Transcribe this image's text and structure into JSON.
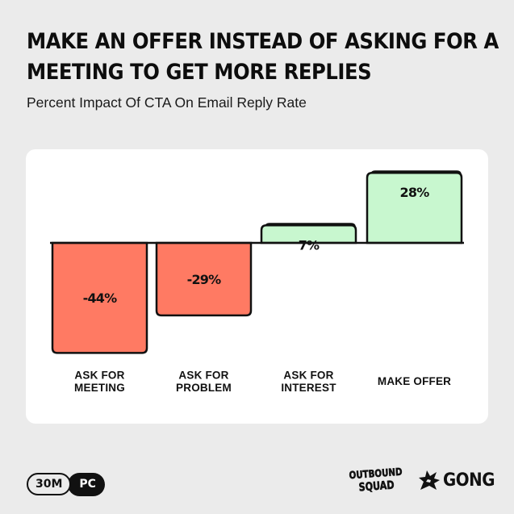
{
  "header": {
    "title_line1": "MAKE AN OFFER INSTEAD OF ASKING FOR A",
    "title_line2": "MEETING TO GET MORE REPLIES",
    "subtitle": "Percent Impact Of CTA On Email Reply Rate"
  },
  "chart_data": {
    "type": "bar",
    "title": "",
    "categories": [
      [
        "ASK FOR",
        "MEETING"
      ],
      [
        "ASK FOR",
        "PROBLEM"
      ],
      [
        "ASK FOR",
        "INTEREST"
      ],
      [
        "MAKE OFFER"
      ]
    ],
    "values": [
      -44,
      -29,
      7,
      28
    ],
    "value_labels": [
      "-44%",
      "-29%",
      "7%",
      "28%"
    ],
    "unit": "%",
    "ylim": [
      -44,
      28
    ],
    "grid": false,
    "legend": "none",
    "colors": {
      "negative": "#ff7a63",
      "positive": "#c8f7cf",
      "outline": "#111111",
      "baseline": "#111111"
    }
  },
  "footer": {
    "badge_outline": "30M",
    "badge_filled": "PC",
    "logo_squad_line1": "OUTBOUND",
    "logo_squad_line2": "SQUAD",
    "logo_gong": "GONG"
  },
  "colors": {
    "background": "#ebebeb",
    "card": "#ffffff",
    "text": "#111111"
  }
}
